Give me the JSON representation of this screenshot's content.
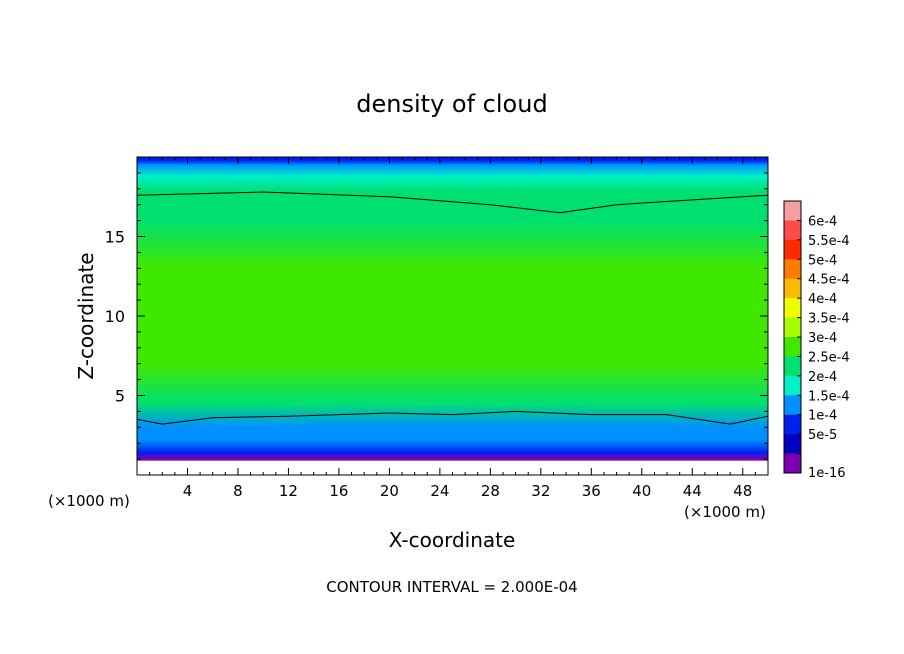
{
  "chart_data": {
    "type": "heatmap",
    "title": "density of cloud",
    "xlabel": "X-coordinate",
    "ylabel": "Z-coordinate",
    "x_unit": "(×1000 m)",
    "xlim": [
      0,
      50
    ],
    "ylim": [
      0,
      20
    ],
    "x_ticks": [
      4,
      8,
      12,
      16,
      20,
      24,
      28,
      32,
      36,
      40,
      44,
      48
    ],
    "y_ticks": [
      5,
      10,
      15
    ],
    "footer": "CONTOUR INTERVAL = 2.000E-04",
    "colorbar": {
      "labels": [
        "6e-4",
        "5.5e-4",
        "5e-4",
        "4.5e-4",
        "4e-4",
        "3.5e-4",
        "3e-4",
        "2.5e-4",
        "2e-4",
        "1.5e-4",
        "1e-4",
        "5e-5",
        "1e-16"
      ],
      "colors": [
        "#f4a0a0",
        "#ff4b4b",
        "#ff2a00",
        "#ff7a00",
        "#ffbb00",
        "#f0ff00",
        "#a8ff00",
        "#40e800",
        "#00e070",
        "#00f0c8",
        "#0090ff",
        "#0020f0",
        "#0000c0",
        "#7a00b0"
      ]
    },
    "vertical_profile": [
      {
        "z": 1.0,
        "value": 0.0
      },
      {
        "z": 1.4,
        "value": 5e-05
      },
      {
        "z": 2.2,
        "value": 0.0001
      },
      {
        "z": 3.0,
        "value": 0.00015
      },
      {
        "z": 4.5,
        "value": 0.0002
      },
      {
        "z": 7.0,
        "value": 0.00025
      },
      {
        "z": 10.0,
        "value": 0.000275
      },
      {
        "z": 13.0,
        "value": 0.00026
      },
      {
        "z": 16.0,
        "value": 0.00024
      },
      {
        "z": 17.8,
        "value": 0.0002
      },
      {
        "z": 18.8,
        "value": 0.00016
      },
      {
        "z": 19.5,
        "value": 0.00011
      },
      {
        "z": 19.8,
        "value": 6e-05
      }
    ],
    "contour_2e-4_upper": [
      {
        "x": 0,
        "z": 17.6
      },
      {
        "x": 10,
        "z": 17.8
      },
      {
        "x": 20,
        "z": 17.5
      },
      {
        "x": 28,
        "z": 17.0
      },
      {
        "x": 33.5,
        "z": 16.5
      },
      {
        "x": 38,
        "z": 17.0
      },
      {
        "x": 44,
        "z": 17.3
      },
      {
        "x": 50,
        "z": 17.6
      }
    ],
    "contour_2e-4_lower": [
      {
        "x": 0,
        "z": 3.5
      },
      {
        "x": 2,
        "z": 3.2
      },
      {
        "x": 6,
        "z": 3.6
      },
      {
        "x": 12,
        "z": 3.7
      },
      {
        "x": 20,
        "z": 3.9
      },
      {
        "x": 25,
        "z": 3.8
      },
      {
        "x": 30,
        "z": 4.0
      },
      {
        "x": 36,
        "z": 3.8
      },
      {
        "x": 42,
        "z": 3.8
      },
      {
        "x": 47,
        "z": 3.2
      },
      {
        "x": 50,
        "z": 3.7
      }
    ]
  }
}
